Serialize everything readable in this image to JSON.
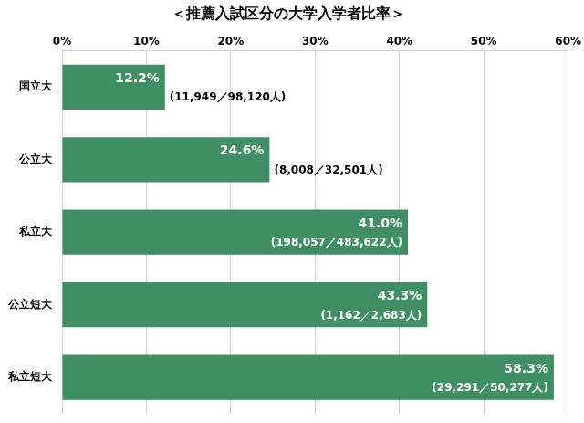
{
  "chart_data": {
    "type": "bar",
    "title": "＜推薦入試区分の大学入学者比率＞",
    "categories": [
      "国立大",
      "公立大",
      "私立大",
      "公立短大",
      "私立短大"
    ],
    "values": [
      12.2,
      24.6,
      41.0,
      43.3,
      58.3
    ],
    "value_labels": [
      "12.2%",
      "24.6%",
      "41.0%",
      "43.3%",
      "58.3%"
    ],
    "annotations": [
      "(11,949／98,120人)",
      "(8,008／32,501人)",
      "(198,057／483,622人)",
      "(1,162／2,683人)",
      "(29,291／50,277人)"
    ],
    "color": "#3f8f63",
    "orientation": "horizontal",
    "data_labels": true,
    "grid": true,
    "xlim": [
      0,
      60
    ],
    "xticks": [
      {
        "value": 0,
        "label": "0%"
      },
      {
        "value": 10,
        "label": "10%"
      },
      {
        "value": 20,
        "label": "20%"
      },
      {
        "value": 30,
        "label": "30%"
      },
      {
        "value": 40,
        "label": "40%"
      },
      {
        "value": 50,
        "label": "50%"
      },
      {
        "value": 60,
        "label": "60%"
      }
    ]
  }
}
